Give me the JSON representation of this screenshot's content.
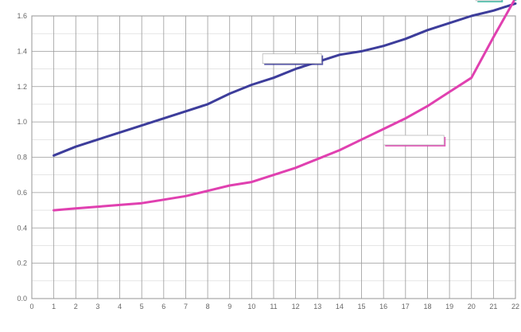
{
  "chart_data": {
    "type": "line",
    "title": "",
    "xlabel": "",
    "ylabel": "",
    "x": [
      1,
      2,
      3,
      4,
      5,
      6,
      7,
      8,
      9,
      10,
      11,
      12,
      13,
      14,
      15,
      16,
      17,
      18,
      19,
      20,
      21,
      22
    ],
    "xlim": [
      0,
      22
    ],
    "ylim": [
      0,
      1.6
    ],
    "y_ticks": [
      0,
      0.2,
      0.4,
      0.6,
      0.8,
      1.0,
      1.2,
      1.4,
      1.6
    ],
    "grid": true,
    "legend": "none",
    "series": [
      {
        "name": "",
        "color": "#3d3d9b",
        "values": [
          0.81,
          0.86,
          0.9,
          0.94,
          0.98,
          1.02,
          1.06,
          1.1,
          1.16,
          1.21,
          1.25,
          1.3,
          1.34,
          1.38,
          1.4,
          1.43,
          1.47,
          1.52,
          1.56,
          1.6,
          1.63,
          1.67
        ]
      },
      {
        "name": "",
        "color": "#e040b0",
        "values": [
          0.5,
          0.51,
          0.52,
          0.53,
          0.54,
          0.56,
          0.58,
          0.61,
          0.64,
          0.66,
          0.7,
          0.74,
          0.79,
          0.84,
          0.9,
          0.96,
          1.02,
          1.09,
          1.17,
          1.25,
          1.48,
          1.7
        ]
      }
    ]
  }
}
